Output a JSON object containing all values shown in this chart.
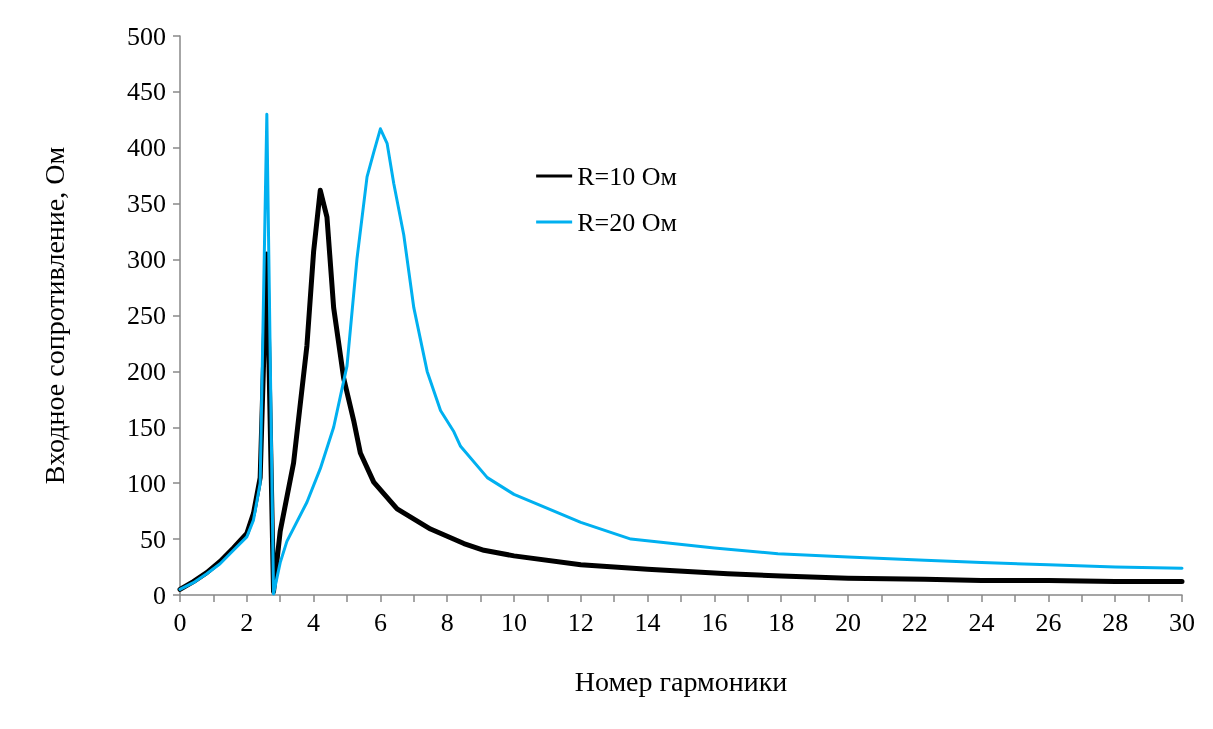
{
  "chart_data": {
    "type": "line",
    "xlabel": "Номер гармоники",
    "ylabel": "Входное сопротивление, Ом",
    "xlim": [
      0,
      30
    ],
    "xticks": [
      0,
      {
        "value": 1,
        "label": null
      },
      2,
      {
        "value": 3,
        "label": null
      },
      4,
      {
        "value": 5,
        "label": null
      },
      6,
      {
        "value": 7,
        "label": null
      },
      8,
      {
        "value": 9,
        "label": null
      },
      10,
      {
        "value": 11,
        "label": null
      },
      12,
      {
        "value": 13,
        "label": null
      },
      14,
      {
        "value": 15,
        "label": null
      },
      16,
      {
        "value": 17,
        "label": null
      },
      18,
      {
        "value": 19,
        "label": null
      },
      20,
      {
        "value": 21,
        "label": null
      },
      22,
      {
        "value": 23,
        "label": null
      },
      24,
      {
        "value": 25,
        "label": null
      },
      26,
      {
        "value": 27,
        "label": null
      },
      28,
      {
        "value": 29,
        "label": null
      },
      30
    ],
    "ylim": [
      0,
      500
    ],
    "yticks": [
      0,
      50,
      100,
      150,
      200,
      250,
      300,
      350,
      400,
      450,
      500
    ],
    "grid": false,
    "legend": "top",
    "marker": "none",
    "line_style": "solid",
    "series": [
      {
        "name": "R=10 Ом",
        "color": "#000000",
        "x": [
          0,
          0.4,
          0.8,
          1.2,
          1.6,
          2.0,
          2.2,
          2.4,
          2.6,
          2.8,
          3.0,
          3.4,
          3.8,
          4.0,
          4.2,
          4.4,
          4.6,
          4.9,
          5.2,
          5.4,
          5.8,
          6.5,
          7.5,
          8.5,
          9.1,
          10,
          12,
          14,
          16.4,
          18,
          20,
          22.3,
          24,
          26,
          28,
          30
        ],
        "values": [
          5,
          12,
          20,
          30,
          42,
          55,
          73,
          105,
          305,
          3,
          57,
          118,
          223,
          307,
          362,
          338,
          257,
          194,
          156,
          127,
          101,
          77,
          59,
          46,
          40,
          35,
          27,
          23,
          19,
          17,
          15,
          14,
          13,
          13,
          12,
          12
        ]
      },
      {
        "name": "R=20 Ом",
        "color": "#00b0f0",
        "x": [
          0,
          0.4,
          0.8,
          1.2,
          1.6,
          2.0,
          2.2,
          2.4,
          2.6,
          2.8,
          3.0,
          3.2,
          3.8,
          4.2,
          4.6,
          5.0,
          5.3,
          5.6,
          5.8,
          6.0,
          6.2,
          6.4,
          6.7,
          7.0,
          7.4,
          7.8,
          8.2,
          8.4,
          9.2,
          10,
          12,
          13.5,
          16,
          17.9,
          20,
          22.3,
          24,
          26,
          28,
          30
        ],
        "values": [
          5,
          11,
          19,
          28,
          40,
          52,
          67,
          100,
          430,
          1,
          29,
          48,
          83,
          113,
          150,
          205,
          301,
          374,
          396,
          417,
          404,
          368,
          322,
          257,
          200,
          165,
          146,
          133,
          105,
          90,
          65,
          50,
          42,
          37,
          34,
          31,
          29,
          27,
          25,
          24
        ]
      }
    ]
  }
}
